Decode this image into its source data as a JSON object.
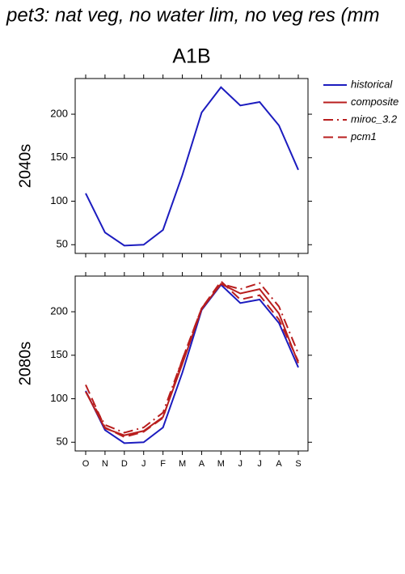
{
  "title": "pet3: nat veg, no water lim, no veg res (mm",
  "panel_title": "A1B",
  "chart_data": [
    {
      "type": "line",
      "ylabel": "2040s",
      "categories": [
        "O",
        "N",
        "D",
        "J",
        "F",
        "M",
        "A",
        "M",
        "J",
        "J",
        "A",
        "S"
      ],
      "ylim": [
        40,
        241
      ],
      "yticks": [
        50,
        100,
        150,
        200
      ],
      "series": [
        {
          "name": "historical",
          "color": "#1c1cbf",
          "dash": "solid",
          "values": [
            109,
            64,
            49,
            50,
            67,
            130,
            202,
            231,
            210,
            214,
            187,
            136
          ]
        }
      ]
    },
    {
      "type": "line",
      "ylabel": "2080s",
      "categories": [
        "O",
        "N",
        "D",
        "J",
        "F",
        "M",
        "A",
        "M",
        "J",
        "J",
        "A",
        "S"
      ],
      "ylim": [
        40,
        241
      ],
      "yticks": [
        50,
        100,
        150,
        200
      ],
      "series": [
        {
          "name": "historical",
          "color": "#1c1cbf",
          "dash": "solid",
          "values": [
            109,
            64,
            49,
            50,
            67,
            130,
            202,
            231,
            210,
            214,
            187,
            136
          ]
        },
        {
          "name": "composite",
          "color": "#b81e1e",
          "dash": "solid",
          "values": [
            108,
            66,
            58,
            63,
            79,
            140,
            203,
            232,
            221,
            226,
            198,
            141
          ]
        },
        {
          "name": "miroc_3.2",
          "color": "#b81e1e",
          "dash": "dashdot",
          "values": [
            108,
            70,
            61,
            67,
            84,
            145,
            204,
            232,
            226,
            233,
            206,
            152
          ]
        },
        {
          "name": "pcm1",
          "color": "#b81e1e",
          "dash": "dashed",
          "values": [
            116,
            67,
            56,
            62,
            78,
            145,
            204,
            235,
            214,
            219,
            191,
            143
          ]
        }
      ]
    }
  ]
}
